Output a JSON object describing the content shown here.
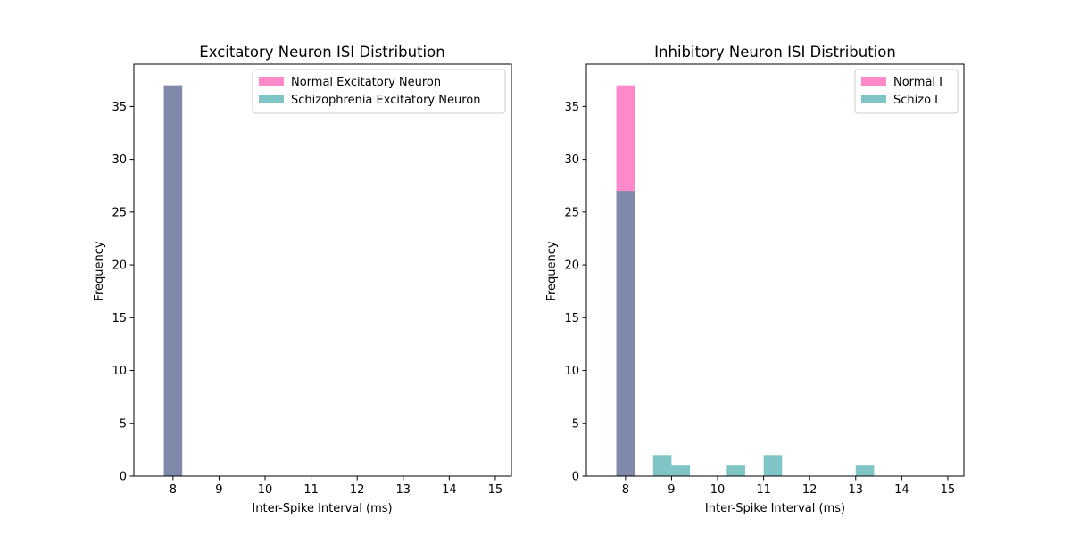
{
  "chart_data": [
    {
      "type": "bar",
      "title": "Excitatory Neuron ISI Distribution",
      "xlabel": "Inter-Spike Interval (ms)",
      "ylabel": "Frequency",
      "xlim": [
        7.15,
        15.35
      ],
      "ylim": [
        0,
        39
      ],
      "xticks": [
        8,
        9,
        10,
        11,
        12,
        13,
        14,
        15
      ],
      "yticks": [
        0,
        5,
        10,
        15,
        20,
        25,
        30,
        35
      ],
      "grid": false,
      "legend_position": "top-right",
      "bin_width": 0.4,
      "series": [
        {
          "name": "Normal Excitatory Neuron",
          "color": "#ff1493",
          "alpha": 0.5,
          "bins": [
            {
              "x0": 7.8,
              "x1": 8.2,
              "count": 37
            }
          ]
        },
        {
          "name": "Schizophrenia Excitatory Neuron",
          "color": "#008b8b",
          "alpha": 0.5,
          "bins": [
            {
              "x0": 7.8,
              "x1": 8.2,
              "count": 37
            }
          ]
        }
      ]
    },
    {
      "type": "bar",
      "title": "Inhibitory Neuron ISI Distribution",
      "xlabel": "Inter-Spike Interval (ms)",
      "ylabel": "Frequency",
      "xlim": [
        7.15,
        15.35
      ],
      "ylim": [
        0,
        39
      ],
      "xticks": [
        8,
        9,
        10,
        11,
        12,
        13,
        14,
        15
      ],
      "yticks": [
        0,
        5,
        10,
        15,
        20,
        25,
        30,
        35
      ],
      "grid": false,
      "legend_position": "top-right",
      "bin_width": 0.4,
      "series": [
        {
          "name": "Normal I",
          "color": "#ff1493",
          "alpha": 0.5,
          "bins": [
            {
              "x0": 7.8,
              "x1": 8.2,
              "count": 37
            }
          ]
        },
        {
          "name": "Schizo I",
          "color": "#008b8b",
          "alpha": 0.5,
          "bins": [
            {
              "x0": 7.8,
              "x1": 8.2,
              "count": 27
            },
            {
              "x0": 8.6,
              "x1": 9.0,
              "count": 2
            },
            {
              "x0": 9.0,
              "x1": 9.4,
              "count": 1
            },
            {
              "x0": 10.2,
              "x1": 10.6,
              "count": 1
            },
            {
              "x0": 11.0,
              "x1": 11.4,
              "count": 2
            },
            {
              "x0": 13.0,
              "x1": 13.4,
              "count": 1
            }
          ]
        }
      ]
    }
  ]
}
